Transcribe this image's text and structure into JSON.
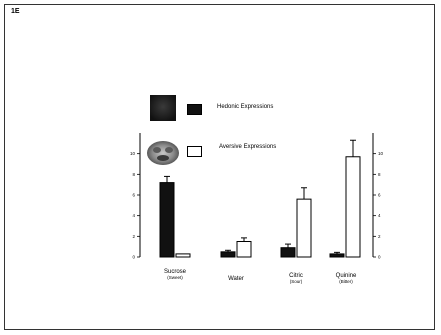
{
  "panel_label": "1E",
  "legend": [
    {
      "label": "Hedonic Expressions",
      "fill": "#111111",
      "photo": "dark-face-photo"
    },
    {
      "label": "Aversive Expressions",
      "fill": "#ffffff",
      "photo": "grimace-face-photo"
    }
  ],
  "chart_data": {
    "type": "bar",
    "title": "",
    "xlabel": "",
    "ylabel": "",
    "categories": [
      {
        "name": "Sucrose",
        "sub": "(Sweet)"
      },
      {
        "name": "Water",
        "sub": ""
      },
      {
        "name": "Citric",
        "sub": "(Sour)"
      },
      {
        "name": "Quinine",
        "sub": "(Bitter)"
      }
    ],
    "series": [
      {
        "name": "Hedonic Expressions",
        "color": "#111111",
        "values": [
          7.2,
          0.5,
          0.9,
          0.3
        ],
        "errors": [
          0.6,
          0.15,
          0.35,
          0.15
        ]
      },
      {
        "name": "Aversive Expressions",
        "color": "#ffffff",
        "values": [
          0.3,
          1.5,
          5.6,
          9.7
        ],
        "errors": [
          0.0,
          0.35,
          1.1,
          1.6
        ]
      }
    ],
    "ylim": [
      0,
      12
    ],
    "left_ticks": [
      "0",
      "2",
      "4",
      "6",
      "8",
      "10"
    ],
    "right_ticks": [
      "0",
      "2",
      "4",
      "6",
      "8",
      "10"
    ],
    "grid": false
  }
}
